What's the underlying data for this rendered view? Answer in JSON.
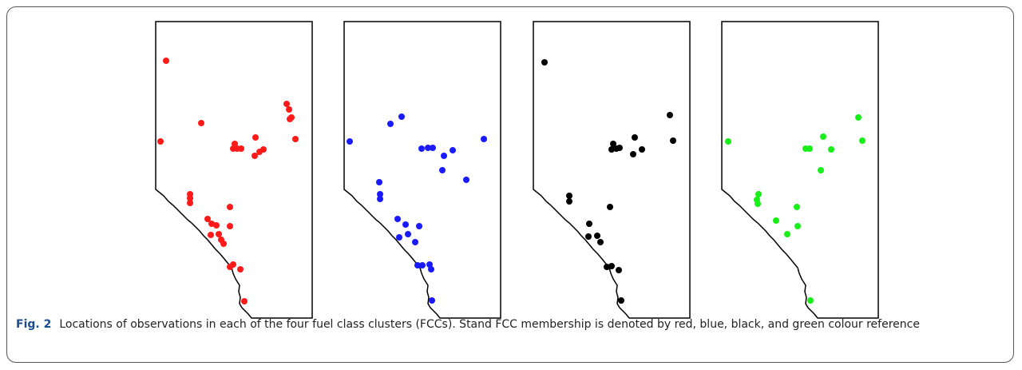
{
  "caption": {
    "label": "Fig. 2",
    "text": "Locations of observations in each of the four fuel class clusters (FCCs). Stand FCC membership is denoted by red, blue, black, and green colour reference"
  }
}
